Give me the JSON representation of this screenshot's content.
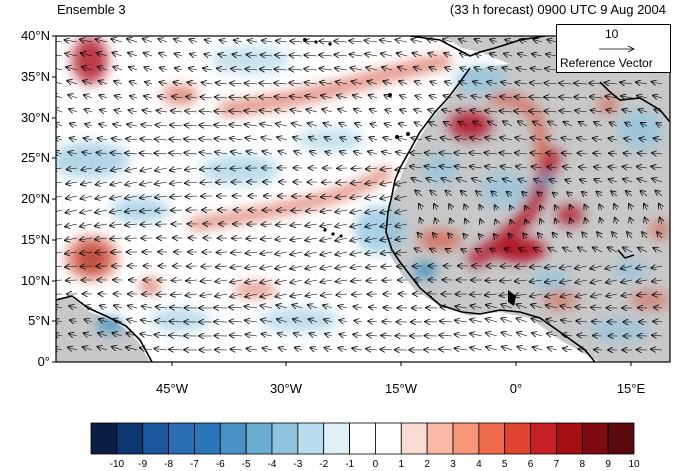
{
  "header": {
    "left": "Ensemble 3",
    "right": "(33 h forecast) 0900 UTC 9 Aug 2004"
  },
  "reference_vector": {
    "value": "10",
    "label": "Reference Vector"
  },
  "axes": {
    "lat_labels": [
      "40°N",
      "35°N",
      "30°N",
      "25°N",
      "20°N",
      "15°N",
      "10°N",
      "5°N",
      "0°"
    ],
    "lon_labels": [
      "45°W",
      "30°W",
      "15°W",
      "0°",
      "15°E"
    ]
  },
  "colorbar": {
    "labels": [
      "-10",
      "-9",
      "-8",
      "-7",
      "-6",
      "-5",
      "-4",
      "-3",
      "-2",
      "-1",
      "0",
      "1",
      "2",
      "3",
      "4",
      "5",
      "6",
      "7",
      "8",
      "9",
      "10"
    ],
    "colors": [
      "#0b1f44",
      "#0e3772",
      "#1c57a0",
      "#2a6db3",
      "#2b76b9",
      "#4a92c6",
      "#6aabd1",
      "#8fc3de",
      "#b8dcec",
      "#dff0f7",
      "#ffffff",
      "#ffffff",
      "#fbdad2",
      "#f9b8a5",
      "#f59679",
      "#ef6a4d",
      "#e0432f",
      "#c72024",
      "#a50f15",
      "#7e0a12",
      "#5a0a0e"
    ]
  },
  "map": {
    "land_color": "#c8c8c8",
    "coast_color": "#000000",
    "field_desc_colors": {
      "warm": "#d6604d",
      "strong_warm": "#b2182b",
      "cool": "#92c5de",
      "strong_cool": "#4393c3"
    }
  }
}
